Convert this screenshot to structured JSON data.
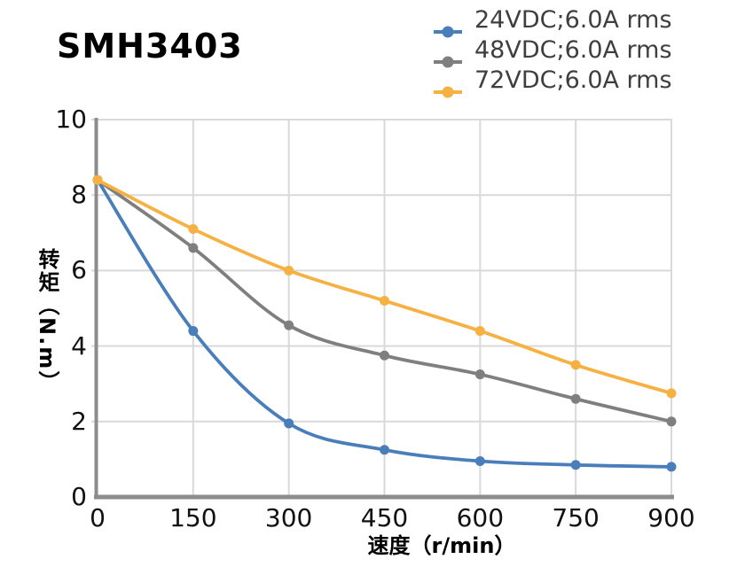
{
  "title": "SMH3403",
  "colors": {
    "grid": "#D9D9D9",
    "axis": "#8C8C8C",
    "tick_text": "#111111",
    "legend_text": "#3F3F3F"
  },
  "chart_data": {
    "type": "line",
    "title": "SMH3403",
    "xlabel": "速度（r/min）",
    "ylabel": "转矩（N.m）",
    "xlim": [
      0,
      900
    ],
    "ylim": [
      0,
      10
    ],
    "xticks": [
      0,
      150,
      300,
      450,
      600,
      750,
      900
    ],
    "yticks": [
      0,
      2,
      4,
      6,
      8,
      10
    ],
    "grid": true,
    "legend_position": "top-right",
    "marker": "circle",
    "smooth": true,
    "x": [
      0,
      150,
      300,
      450,
      600,
      750,
      900
    ],
    "series": [
      {
        "name": "24VDC;6.0A rms",
        "color": "#4A7EBB",
        "values": [
          8.4,
          4.4,
          1.95,
          1.25,
          0.95,
          0.85,
          0.8
        ]
      },
      {
        "name": "48VDC;6.0A rms",
        "color": "#7F7F7F",
        "values": [
          8.4,
          6.6,
          4.55,
          3.75,
          3.25,
          2.6,
          2.0
        ]
      },
      {
        "name": "72VDC;6.0A rms",
        "color": "#F6B142",
        "values": [
          8.4,
          7.1,
          6.0,
          5.2,
          4.4,
          3.5,
          2.75
        ]
      }
    ]
  }
}
